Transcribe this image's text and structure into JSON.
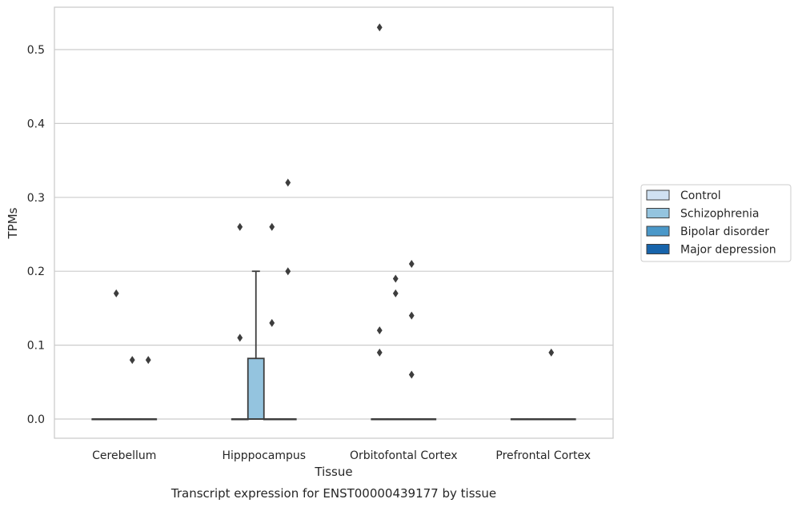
{
  "chart_data": {
    "type": "box",
    "title": "Transcript expression for ENST00000439177 by tissue",
    "xlabel": "Tissue",
    "ylabel": "TPMs",
    "ylim": [
      -0.026,
      0.56
    ],
    "yticks": [
      "0.0",
      "0.1",
      "0.2",
      "0.3",
      "0.4",
      "0.5"
    ],
    "grid": "horizontal",
    "legend_position": "right",
    "categories": [
      "Cerebellum",
      "Hipppocampus",
      "Orbitofontal Cortex",
      "Prefrontal Cortex"
    ],
    "series": [
      {
        "name": "Control",
        "color": "#d0e1f2"
      },
      {
        "name": "Schizophrenia",
        "color": "#94c4df"
      },
      {
        "name": "Bipolar disorder",
        "color": "#4a98c9"
      },
      {
        "name": "Major depression",
        "color": "#1764ab"
      }
    ],
    "boxes": [
      {
        "category": "Cerebellum",
        "series": "Control",
        "q1": 0,
        "median": 0,
        "q3": 0,
        "whisker_low": 0,
        "whisker_high": 0,
        "outliers": []
      },
      {
        "category": "Cerebellum",
        "series": "Schizophrenia",
        "q1": 0,
        "median": 0,
        "q3": 0,
        "whisker_low": 0,
        "whisker_high": 0,
        "outliers": [
          0.17
        ]
      },
      {
        "category": "Cerebellum",
        "series": "Bipolar disorder",
        "q1": 0,
        "median": 0,
        "q3": 0,
        "whisker_low": 0,
        "whisker_high": 0,
        "outliers": [
          0.08
        ]
      },
      {
        "category": "Cerebellum",
        "series": "Major depression",
        "q1": 0,
        "median": 0,
        "q3": 0,
        "whisker_low": 0,
        "whisker_high": 0,
        "outliers": [
          0.08
        ]
      },
      {
        "category": "Hipppocampus",
        "series": "Control",
        "q1": 0,
        "median": 0,
        "q3": 0,
        "whisker_low": 0,
        "whisker_high": 0,
        "outliers": [
          0.26,
          0.11
        ]
      },
      {
        "category": "Hipppocampus",
        "series": "Schizophrenia",
        "q1": 0,
        "median": 0,
        "q3": 0.082,
        "whisker_low": 0,
        "whisker_high": 0.2,
        "outliers": []
      },
      {
        "category": "Hipppocampus",
        "series": "Bipolar disorder",
        "q1": 0,
        "median": 0,
        "q3": 0,
        "whisker_low": 0,
        "whisker_high": 0,
        "outliers": [
          0.26,
          0.13
        ]
      },
      {
        "category": "Hipppocampus",
        "series": "Major depression",
        "q1": 0,
        "median": 0,
        "q3": 0,
        "whisker_low": 0,
        "whisker_high": 0,
        "outliers": [
          0.32,
          0.2
        ]
      },
      {
        "category": "Orbitofontal Cortex",
        "series": "Control",
        "q1": 0,
        "median": 0,
        "q3": 0,
        "whisker_low": 0,
        "whisker_high": 0,
        "outliers": [
          0.53,
          0.12,
          0.09
        ]
      },
      {
        "category": "Orbitofontal Cortex",
        "series": "Schizophrenia",
        "q1": 0,
        "median": 0,
        "q3": 0,
        "whisker_low": 0,
        "whisker_high": 0,
        "outliers": [
          0.19,
          0.17
        ]
      },
      {
        "category": "Orbitofontal Cortex",
        "series": "Bipolar disorder",
        "q1": 0,
        "median": 0,
        "q3": 0,
        "whisker_low": 0,
        "whisker_high": 0,
        "outliers": [
          0.21,
          0.14,
          0.06
        ]
      },
      {
        "category": "Orbitofontal Cortex",
        "series": "Major depression",
        "q1": 0,
        "median": 0,
        "q3": 0,
        "whisker_low": 0,
        "whisker_high": 0,
        "outliers": []
      },
      {
        "category": "Prefrontal Cortex",
        "series": "Control",
        "q1": 0,
        "median": 0,
        "q3": 0,
        "whisker_low": 0,
        "whisker_high": 0,
        "outliers": []
      },
      {
        "category": "Prefrontal Cortex",
        "series": "Schizophrenia",
        "q1": 0,
        "median": 0,
        "q3": 0,
        "whisker_low": 0,
        "whisker_high": 0,
        "outliers": []
      },
      {
        "category": "Prefrontal Cortex",
        "series": "Bipolar disorder",
        "q1": 0,
        "median": 0,
        "q3": 0,
        "whisker_low": 0,
        "whisker_high": 0,
        "outliers": [
          0.09
        ]
      },
      {
        "category": "Prefrontal Cortex",
        "series": "Major depression",
        "q1": 0,
        "median": 0,
        "q3": 0,
        "whisker_low": 0,
        "whisker_high": 0,
        "outliers": []
      }
    ]
  }
}
